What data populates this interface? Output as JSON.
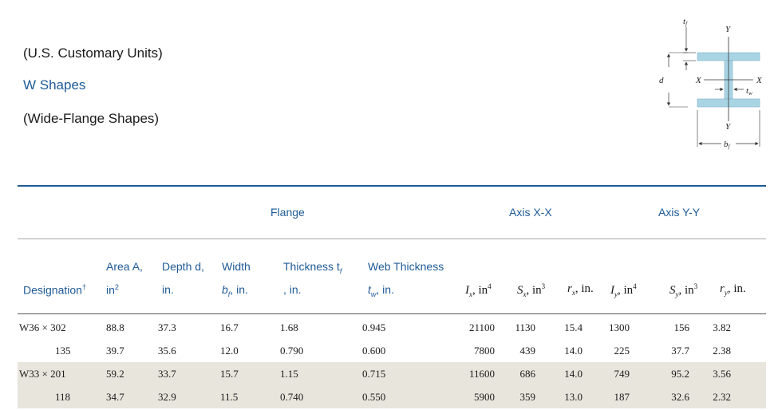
{
  "titles": {
    "units": "(U.S. Customary Units)",
    "shape": "W Shapes",
    "subtitle": "(Wide-Flange Shapes)"
  },
  "diagram": {
    "labels": {
      "tf": "t",
      "tf_sub": "f",
      "Y_top": "Y",
      "d": "d",
      "X_left": "X",
      "X_right": "X",
      "tw": "t",
      "tw_sub": "w",
      "Y_bottom": "Y",
      "bf": "b",
      "bf_sub": "f"
    },
    "colors": {
      "section": "#a9d4e4",
      "dim": "#333333"
    }
  },
  "groups": {
    "flange": "Flange",
    "axis_xx": "Axis X-X",
    "axis_yy": "Axis Y-Y"
  },
  "headers": {
    "designation": "Designation",
    "designation_mark": "†",
    "area_l1": "Area A,",
    "area_l2": "in",
    "area_exp": "2",
    "depth_l1": "Depth d,",
    "depth_l2": "in.",
    "width_l1": "Width",
    "width_b": "b",
    "width_sub": "f",
    "width_unit": ", in.",
    "thick_l1": "Thickness t",
    "thick_sub": "f",
    "thick_l2": ", in.",
    "web_l1": "Web Thickness",
    "web_t": "t",
    "web_sub": "w",
    "web_unit": ", in.",
    "Ix": "I",
    "Ix_sub": "x",
    "Ix_unit": ", in",
    "Ix_exp": "4",
    "Sx": "S",
    "Sx_sub": "x",
    "Sx_unit": ", in",
    "Sx_exp": "3",
    "rx": "r",
    "rx_sub": "x",
    "rx_unit": ", in.",
    "Iy": "I",
    "Iy_sub": "y",
    "Iy_unit": ", in",
    "Iy_exp": "4",
    "Sy": "S",
    "Sy_sub": "y",
    "Sy_unit": ", in",
    "Sy_exp": "3",
    "ry": "r",
    "ry_sub": "y",
    "ry_unit": ", in."
  },
  "rows": [
    {
      "designation": "W36 × 302",
      "area": "88.8",
      "depth": "37.3",
      "width": "16.7",
      "thickness": "1.68",
      "web": "0.945",
      "Ix": "21100",
      "Sx": "1130",
      "rx": "15.4",
      "Iy": "1300",
      "Sy": "156",
      "ry": "3.82"
    },
    {
      "designation": "135",
      "area": "39.7",
      "depth": "35.6",
      "width": "12.0",
      "thickness": "0.790",
      "web": "0.600",
      "Ix": "7800",
      "Sx": "439",
      "rx": "14.0",
      "Iy": "225",
      "Sy": "37.7",
      "ry": "2.38"
    },
    {
      "designation": "W33 × 201",
      "area": "59.2",
      "depth": "33.7",
      "width": "15.7",
      "thickness": "1.15",
      "web": "0.715",
      "Ix": "11600",
      "Sx": "686",
      "rx": "14.0",
      "Iy": "749",
      "Sy": "95.2",
      "ry": "3.56"
    },
    {
      "designation": "118",
      "area": "34.7",
      "depth": "32.9",
      "width": "11.5",
      "thickness": "0.740",
      "web": "0.550",
      "Ix": "5900",
      "Sx": "359",
      "rx": "13.0",
      "Iy": "187",
      "Sy": "32.6",
      "ry": "2.32"
    }
  ],
  "colors": {
    "accent": "#1e5a96",
    "row_shade": "#e8e5dd"
  }
}
